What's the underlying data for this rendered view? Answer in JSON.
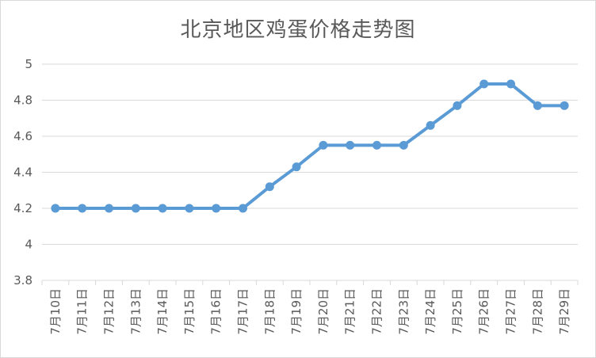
{
  "chart_data": {
    "type": "line",
    "title": "北京地区鸡蛋价格走势图",
    "xlabel": "",
    "ylabel": "",
    "categories": [
      "7月10日",
      "7月11日",
      "7月12日",
      "7月13日",
      "7月14日",
      "7月15日",
      "7月16日",
      "7月17日",
      "7月18日",
      "7月19日",
      "7月20日",
      "7月21日",
      "7月22日",
      "7月23日",
      "7月24日",
      "7月25日",
      "7月26日",
      "7月27日",
      "7月28日",
      "7月29日"
    ],
    "series": [
      {
        "values": [
          4.2,
          4.2,
          4.2,
          4.2,
          4.2,
          4.2,
          4.2,
          4.2,
          4.32,
          4.43,
          4.55,
          4.55,
          4.55,
          4.55,
          4.66,
          4.77,
          4.89,
          4.89,
          4.77,
          4.77
        ]
      }
    ],
    "ylim": [
      3.8,
      5.0
    ],
    "yticks": [
      "3.8",
      "4",
      "4.2",
      "4.4",
      "4.6",
      "4.8",
      "5"
    ],
    "grid": true,
    "legend": "none",
    "colors": {
      "line": "#5b9bd5",
      "grid": "#d9d9d9",
      "text": "#595959"
    }
  }
}
